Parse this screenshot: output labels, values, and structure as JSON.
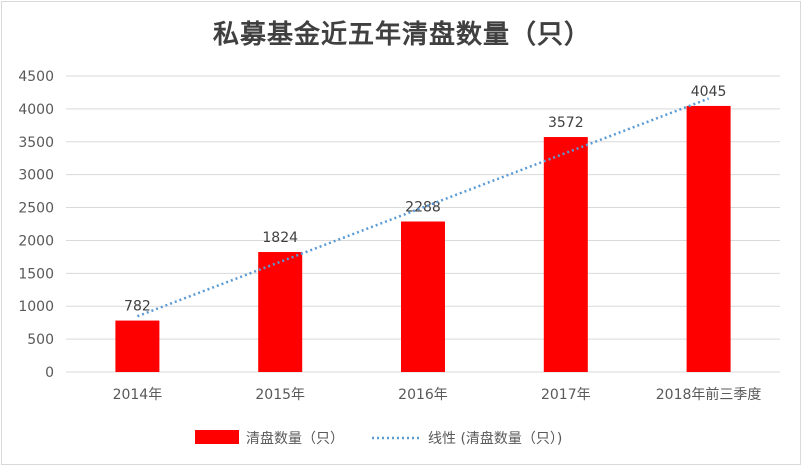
{
  "chart_data": {
    "type": "bar",
    "title": "私募基金近五年清盘数量（只）",
    "categories": [
      "2014年",
      "2015年",
      "2016年",
      "2017年",
      "2018年前三季度"
    ],
    "series": [
      {
        "name": "清盘数量（只）",
        "values": [
          782,
          1824,
          2288,
          3572,
          4045
        ],
        "color": "#ff0000"
      }
    ],
    "trendline": {
      "type": "linear",
      "name": "线性 (清盘数量（只）)",
      "color": "#5b9bd5",
      "style": "dotted"
    },
    "data_labels": [
      "782",
      "1824",
      "2288",
      "3572",
      "4045"
    ],
    "y_ticks": [
      "0",
      "500",
      "1000",
      "1500",
      "2000",
      "2500",
      "3000",
      "3500",
      "4000",
      "4500"
    ],
    "ylim": [
      0,
      4500
    ],
    "grid": true,
    "legend_position": "bottom",
    "xlabel": "",
    "ylabel": ""
  }
}
